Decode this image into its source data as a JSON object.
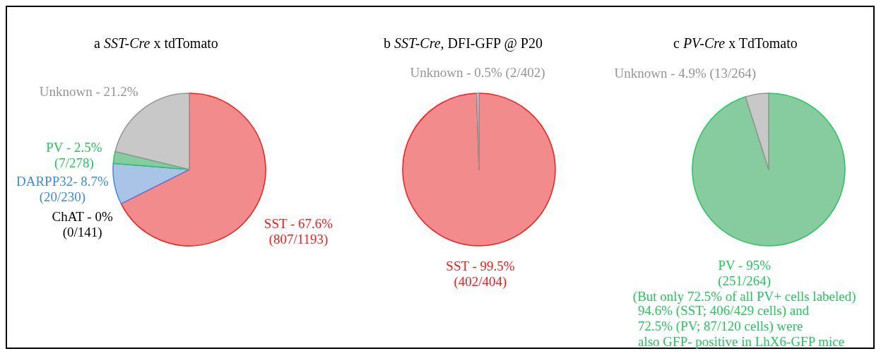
{
  "chart_data": [
    {
      "type": "pie",
      "title": "a SST-Cre x tdTomato",
      "categories": [
        "SST - 67.6%\n(807/1193)",
        "ChAT - 0%\n(0/141)",
        "DARPP32- 8.7%\n(20/230)",
        "PV - 2.5%\n(7/278)",
        "Unknown - 21.2%"
      ],
      "values": [
        67.6,
        0,
        8.7,
        2.5,
        21.2
      ],
      "colors": [
        "#f28b8b",
        "#000000",
        "#a9c4e6",
        "#86cc9e",
        "#c8c8c8"
      ]
    },
    {
      "type": "pie",
      "title": "b SST-Cre, DFI-GFP @ P20",
      "categories": [
        "SST - 99.5%\n(402/404)",
        "Unknown - 0.5% (2/402)"
      ],
      "values": [
        99.5,
        0.5
      ],
      "colors": [
        "#f28b8b",
        "#c8c8c8"
      ]
    },
    {
      "type": "pie",
      "title": "c PV-Cre x TdTomato",
      "categories": [
        "PV - 95%\n(251/264)\n(But only 72.5% of all PV+ cells labeled)",
        "Unknown - 4.9% (13/264)"
      ],
      "values": [
        95,
        4.9
      ],
      "colors": [
        "#86cc9e",
        "#c8c8c8"
      ],
      "annotations": [
        "94.6% (SST; 406/429 cells) and\n72.5% (PV; 87/120 cells) were\nalso GFP- positive in LhX6-GFP mice"
      ]
    }
  ]
}
